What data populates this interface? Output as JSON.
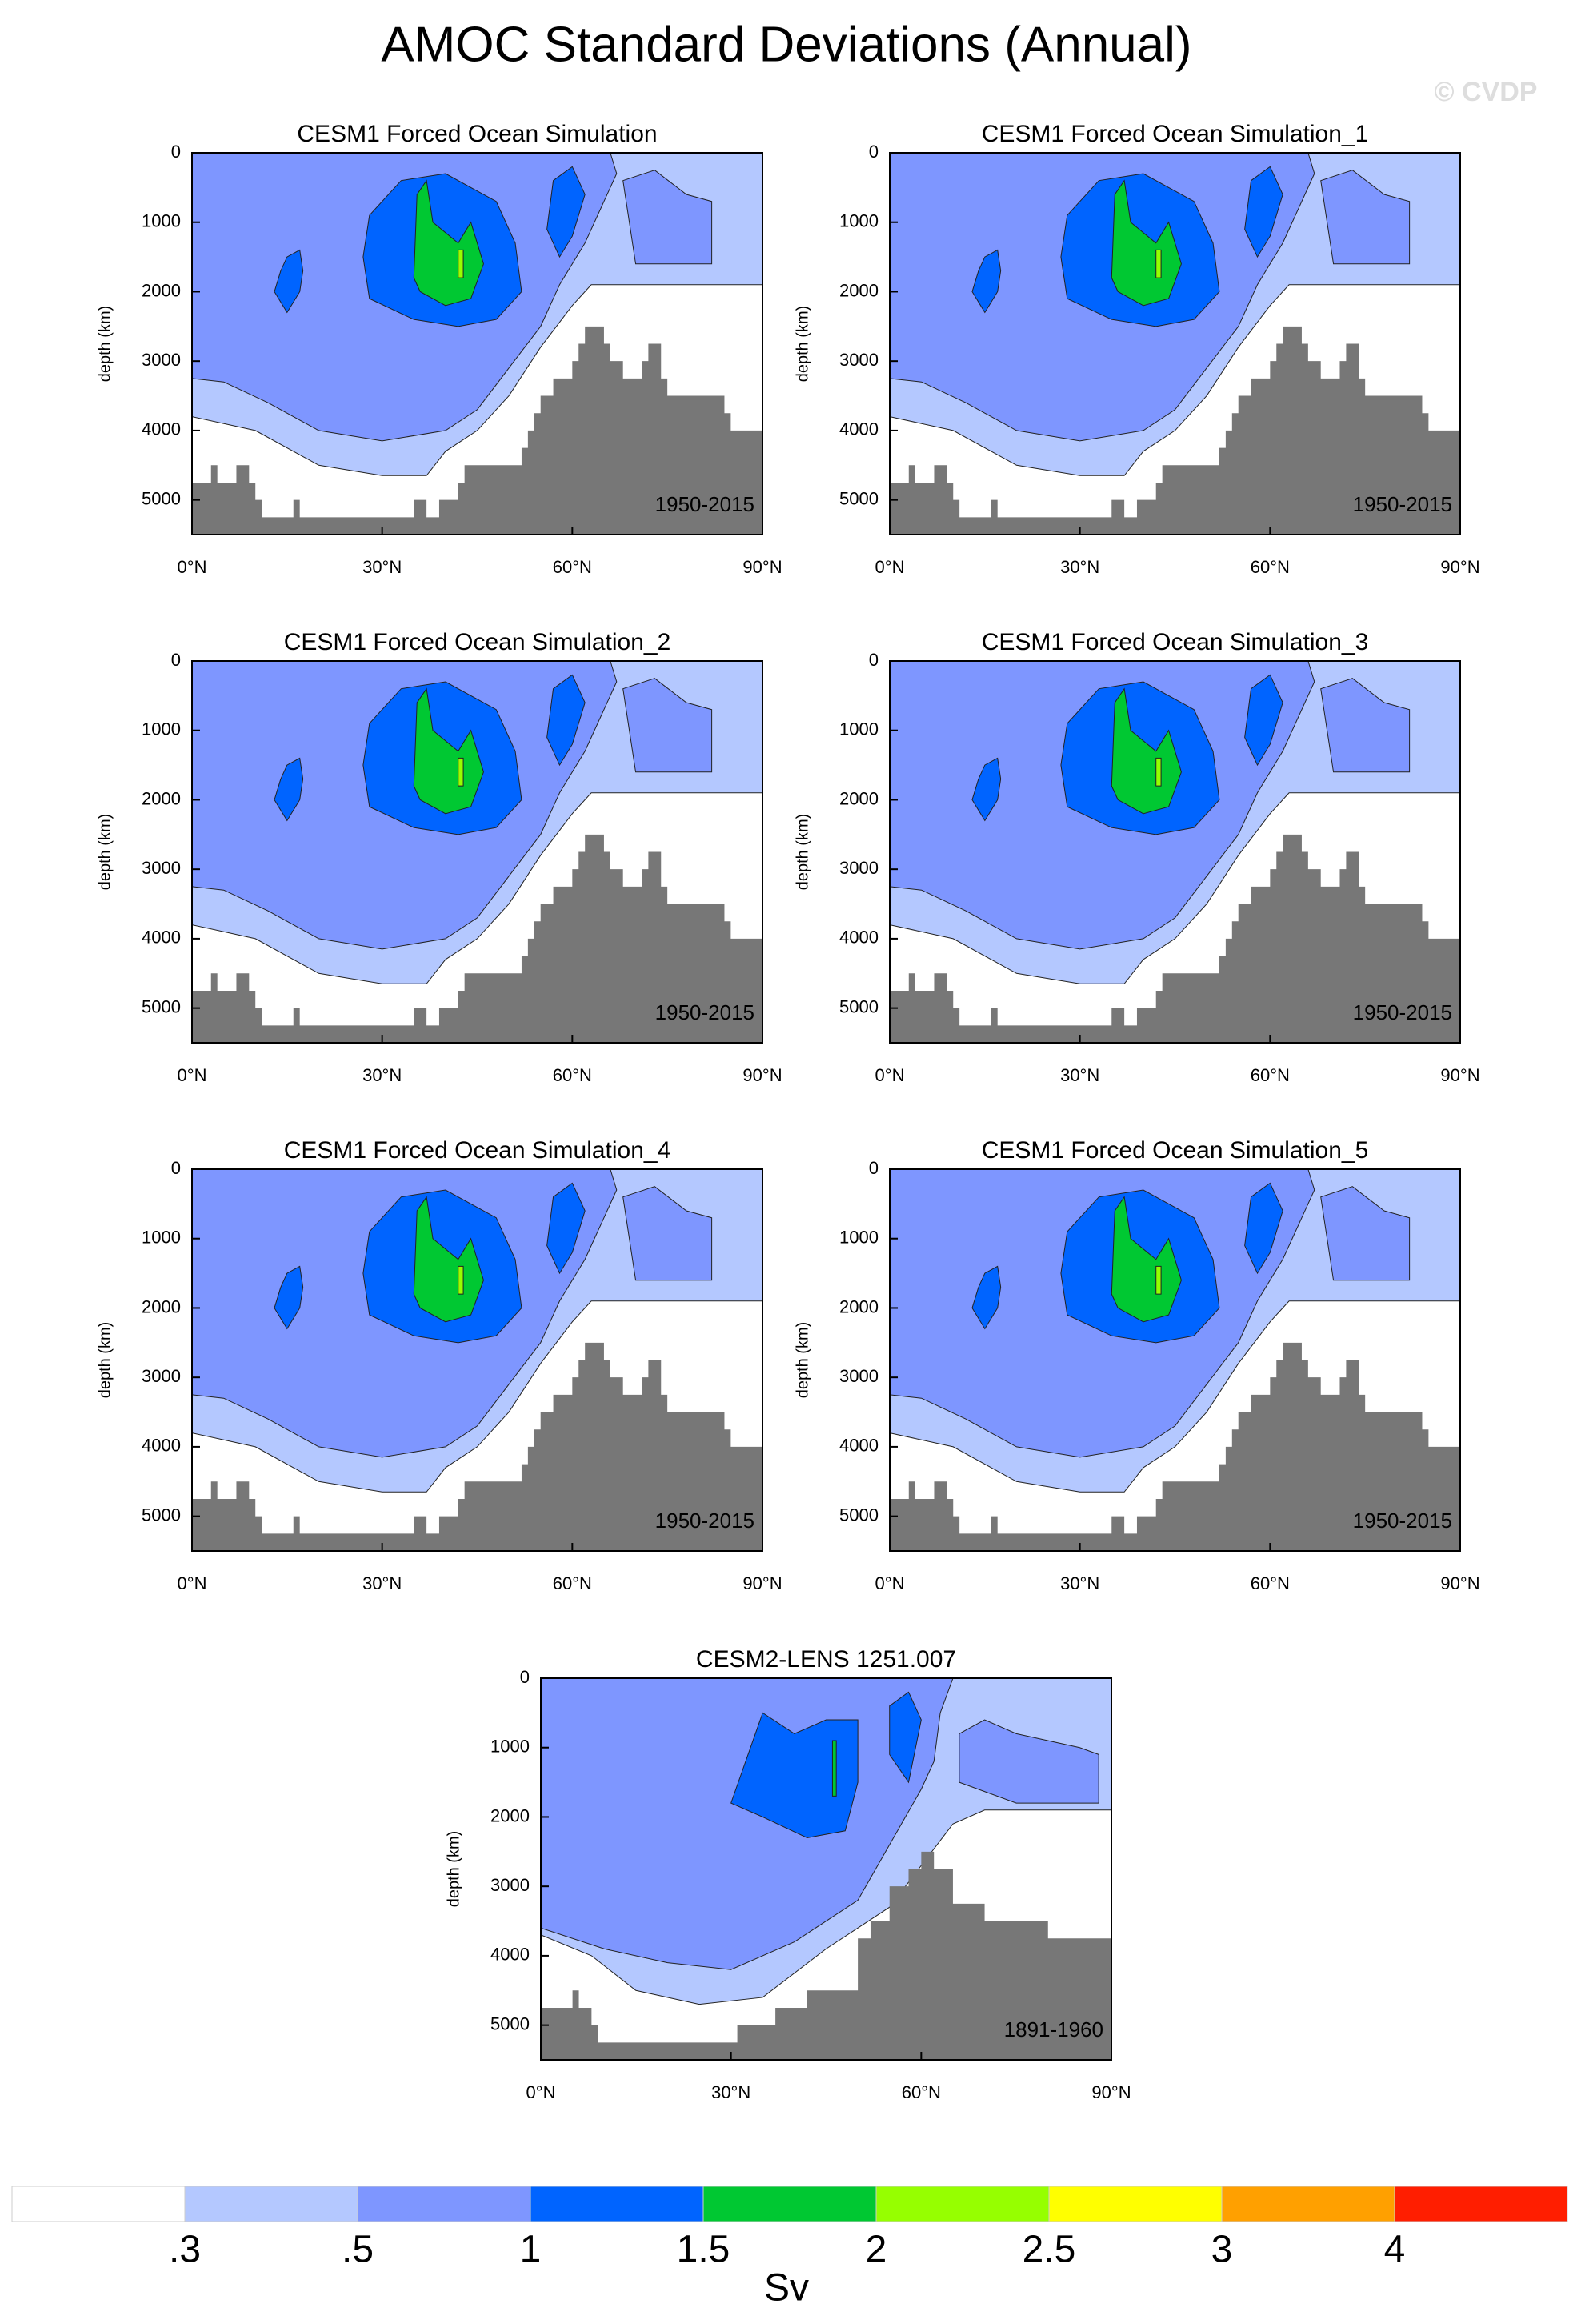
{
  "title": "AMOC Standard Deviations (Annual)",
  "watermark": "© CVDP",
  "colorbar": {
    "levels": [
      {
        "value": 0.3,
        "label": ".3"
      },
      {
        "value": 0.5,
        "label": ".5"
      },
      1,
      1.5,
      2,
      2.5,
      3,
      4
    ],
    "colors": [
      "#ffffff",
      "#b4c8ff",
      "#7e96ff",
      "#0064ff",
      "#00c832",
      "#96ff00",
      "#ffff00",
      "#ffa000",
      "#ff1e00"
    ],
    "label": "Sv"
  },
  "chart_data": [
    {
      "type": "contour",
      "title": "CESM1 Forced Ocean Simulation",
      "annotation": "1950-2015",
      "ylabel": "depth (km)",
      "xlim": [
        0,
        90
      ],
      "ylim": [
        0,
        5500
      ],
      "xticks": [
        {
          "value": 0,
          "label": "0°N"
        },
        {
          "value": 30,
          "label": "30°N"
        },
        {
          "value": 60,
          "label": "60°N"
        },
        {
          "value": 90,
          "label": "90°N"
        }
      ],
      "yticks": [
        0,
        1000,
        2000,
        3000,
        4000,
        5000
      ]
    },
    {
      "type": "contour",
      "title": "CESM1 Forced Ocean Simulation_1",
      "annotation": "1950-2015",
      "ylabel": "depth (km)",
      "xlim": [
        0,
        90
      ],
      "ylim": [
        0,
        5500
      ],
      "xticks": [
        {
          "value": 0,
          "label": "0°N"
        },
        {
          "value": 30,
          "label": "30°N"
        },
        {
          "value": 60,
          "label": "60°N"
        },
        {
          "value": 90,
          "label": "90°N"
        }
      ],
      "yticks": [
        0,
        1000,
        2000,
        3000,
        4000,
        5000
      ]
    },
    {
      "type": "contour",
      "title": "CESM1 Forced Ocean Simulation_2",
      "annotation": "1950-2015",
      "ylabel": "depth (km)",
      "xlim": [
        0,
        90
      ],
      "ylim": [
        0,
        5500
      ],
      "xticks": [
        {
          "value": 0,
          "label": "0°N"
        },
        {
          "value": 30,
          "label": "30°N"
        },
        {
          "value": 60,
          "label": "60°N"
        },
        {
          "value": 90,
          "label": "90°N"
        }
      ],
      "yticks": [
        0,
        1000,
        2000,
        3000,
        4000,
        5000
      ]
    },
    {
      "type": "contour",
      "title": "CESM1 Forced Ocean Simulation_3",
      "annotation": "1950-2015",
      "ylabel": "depth (km)",
      "xlim": [
        0,
        90
      ],
      "ylim": [
        0,
        5500
      ],
      "xticks": [
        {
          "value": 0,
          "label": "0°N"
        },
        {
          "value": 30,
          "label": "30°N"
        },
        {
          "value": 60,
          "label": "60°N"
        },
        {
          "value": 90,
          "label": "90°N"
        }
      ],
      "yticks": [
        0,
        1000,
        2000,
        3000,
        4000,
        5000
      ]
    },
    {
      "type": "contour",
      "title": "CESM1 Forced Ocean Simulation_4",
      "annotation": "1950-2015",
      "ylabel": "depth (km)",
      "xlim": [
        0,
        90
      ],
      "ylim": [
        0,
        5500
      ],
      "xticks": [
        {
          "value": 0,
          "label": "0°N"
        },
        {
          "value": 30,
          "label": "30°N"
        },
        {
          "value": 60,
          "label": "60°N"
        },
        {
          "value": 90,
          "label": "90°N"
        }
      ],
      "yticks": [
        0,
        1000,
        2000,
        3000,
        4000,
        5000
      ]
    },
    {
      "type": "contour",
      "title": "CESM1 Forced Ocean Simulation_5",
      "annotation": "1950-2015",
      "ylabel": "depth (km)",
      "xlim": [
        0,
        90
      ],
      "ylim": [
        0,
        5500
      ],
      "xticks": [
        {
          "value": 0,
          "label": "0°N"
        },
        {
          "value": 30,
          "label": "30°N"
        },
        {
          "value": 60,
          "label": "60°N"
        },
        {
          "value": 90,
          "label": "90°N"
        }
      ],
      "yticks": [
        0,
        1000,
        2000,
        3000,
        4000,
        5000
      ]
    },
    {
      "type": "contour",
      "title": "CESM2-LENS 1251.007",
      "annotation": "1891-1960",
      "ylabel": "depth (km)",
      "xlim": [
        0,
        90
      ],
      "ylim": [
        0,
        5500
      ],
      "xticks": [
        {
          "value": 0,
          "label": "0°N"
        },
        {
          "value": 30,
          "label": "30°N"
        },
        {
          "value": 60,
          "label": "60°N"
        },
        {
          "value": 90,
          "label": "90°N"
        }
      ],
      "yticks": [
        0,
        1000,
        2000,
        3000,
        4000,
        5000
      ]
    }
  ]
}
